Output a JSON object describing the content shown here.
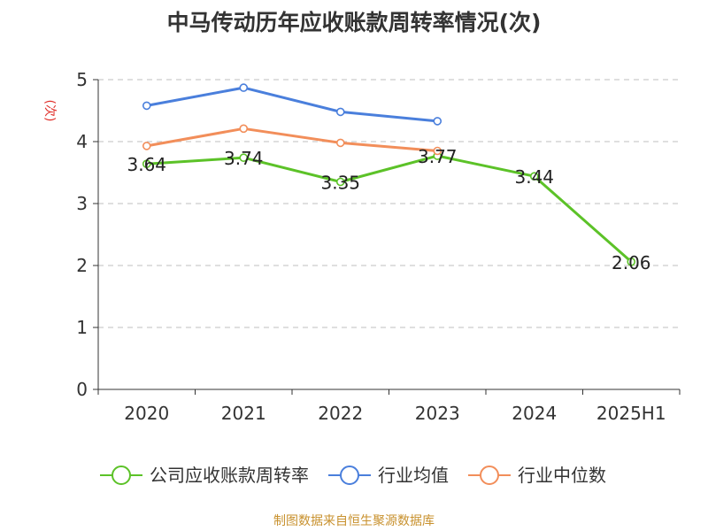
{
  "chart_data": {
    "type": "line",
    "title": "中马传动历年应收账款周转率情况(次)",
    "ylabel": "(次)",
    "xlabel": "",
    "categories": [
      "2020",
      "2021",
      "2022",
      "2023",
      "2024",
      "2025H1"
    ],
    "ylim": [
      0,
      5
    ],
    "yticks": [
      "0",
      "1",
      "2",
      "3",
      "4",
      "5"
    ],
    "grid": true,
    "legend_position": "bottom",
    "series": [
      {
        "name": "公司应收账款周转率",
        "color": "#5cc228",
        "values": [
          3.64,
          3.74,
          3.35,
          3.77,
          3.44,
          2.06
        ],
        "labels": [
          "3.64",
          "3.74",
          "3.35",
          "3.77",
          "3.44",
          "2.06"
        ]
      },
      {
        "name": "行业均值",
        "color": "#4a7fdc",
        "values": [
          4.58,
          4.87,
          4.48,
          4.33,
          null,
          null
        ]
      },
      {
        "name": "行业中位数",
        "color": "#f28e5a",
        "values": [
          3.93,
          4.21,
          3.98,
          3.85,
          null,
          null
        ]
      }
    ]
  },
  "source": "制图数据来自恒生聚源数据库",
  "colors": {
    "title": "#333333",
    "ylabel": "#e0302b",
    "grid": "#cccccc",
    "axis": "#333333",
    "source": "#c8912e"
  }
}
